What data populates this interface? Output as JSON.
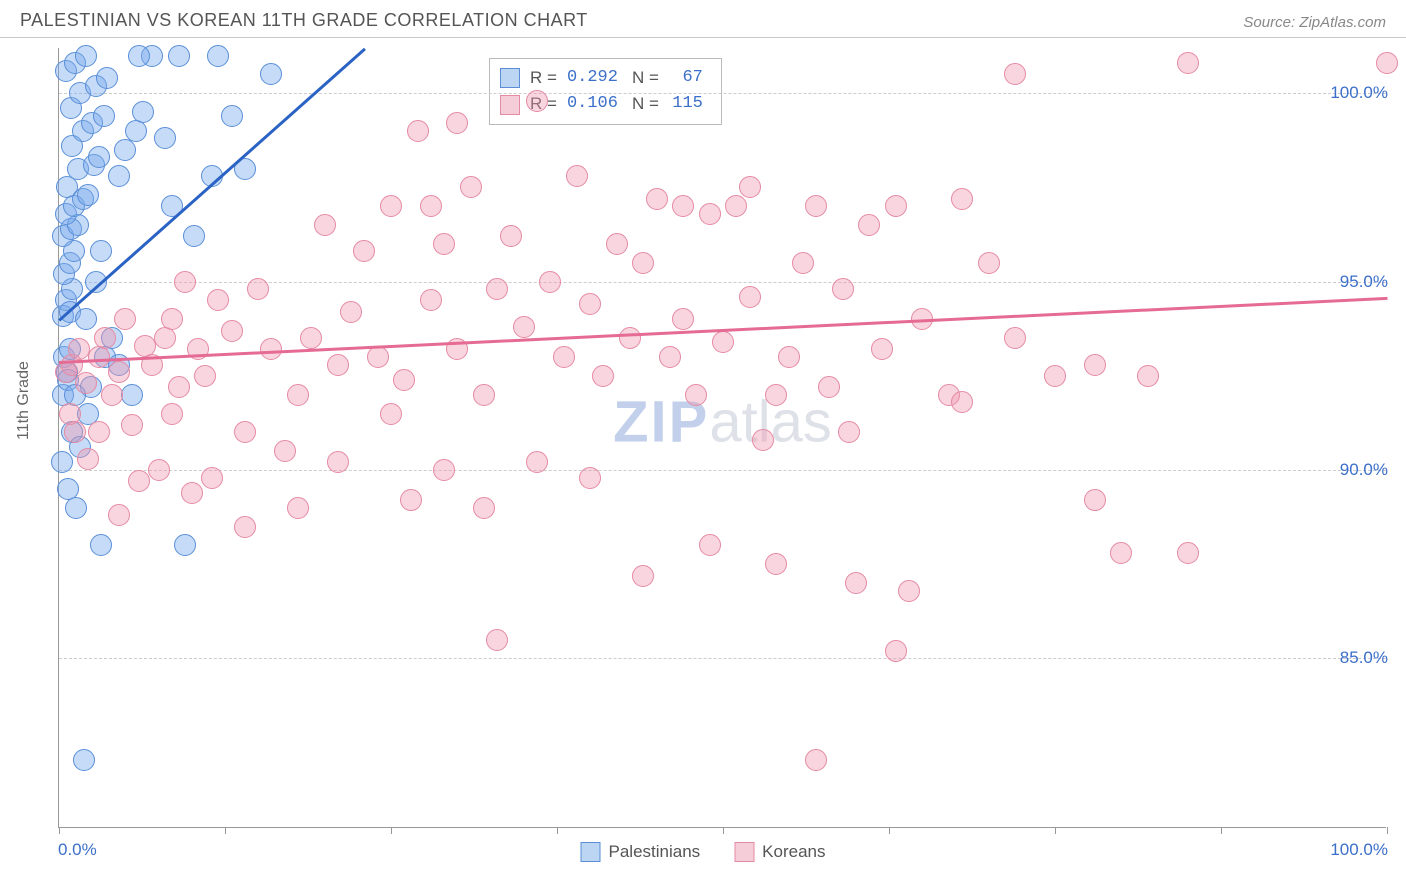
{
  "header": {
    "title": "PALESTINIAN VS KOREAN 11TH GRADE CORRELATION CHART",
    "source_prefix": "Source: ",
    "source_name": "ZipAtlas.com"
  },
  "watermark": {
    "bold": "ZIP",
    "rest": "atlas"
  },
  "chart": {
    "type": "scatter",
    "ylabel": "11th Grade",
    "xlim": [
      0,
      100
    ],
    "ylim": [
      80.5,
      101.2
    ],
    "x_axis_labels": {
      "min": "0.0%",
      "max": "100.0%"
    },
    "x_ticks": [
      0,
      12.5,
      25,
      37.5,
      50,
      62.5,
      75,
      87.5,
      100
    ],
    "y_gridlines": [
      {
        "value": 85.0,
        "label": "85.0%"
      },
      {
        "value": 90.0,
        "label": "90.0%"
      },
      {
        "value": 95.0,
        "label": "95.0%"
      },
      {
        "value": 100.0,
        "label": "100.0%"
      }
    ],
    "background_color": "#ffffff",
    "grid_color": "#cccccc",
    "axis_color": "#999999",
    "tick_font_color": "#3b6fc9",
    "label_fontsize": 16,
    "tick_fontsize": 17,
    "point_radius": 11,
    "point_border_width": 1.5,
    "trend_line_width": 2.5,
    "series": [
      {
        "name": "Palestinians",
        "fill_color": "rgba(120,170,235,0.42)",
        "stroke_color": "#5a8fd8",
        "trend_color": "#2a63c4",
        "swatch_fill": "#bcd5f2",
        "swatch_border": "#5a8fd8",
        "stats": {
          "R": "0.292",
          "N": "67"
        },
        "trend": {
          "x1": 0,
          "y1": 94.0,
          "x2": 23,
          "y2": 101.2
        },
        "points": [
          [
            0.4,
            93.0
          ],
          [
            0.6,
            92.6
          ],
          [
            0.8,
            93.2
          ],
          [
            0.3,
            94.1
          ],
          [
            0.5,
            94.5
          ],
          [
            0.8,
            94.2
          ],
          [
            1.0,
            94.8
          ],
          [
            0.4,
            95.2
          ],
          [
            0.8,
            95.5
          ],
          [
            1.1,
            95.8
          ],
          [
            0.3,
            96.2
          ],
          [
            0.9,
            96.4
          ],
          [
            1.4,
            96.5
          ],
          [
            0.5,
            96.8
          ],
          [
            1.1,
            97.0
          ],
          [
            1.8,
            97.2
          ],
          [
            2.2,
            97.3
          ],
          [
            0.6,
            97.5
          ],
          [
            1.4,
            98.0
          ],
          [
            2.6,
            98.1
          ],
          [
            3.0,
            98.3
          ],
          [
            1.0,
            98.6
          ],
          [
            1.8,
            99.0
          ],
          [
            2.5,
            99.2
          ],
          [
            3.4,
            99.4
          ],
          [
            0.9,
            99.6
          ],
          [
            1.6,
            100.0
          ],
          [
            2.8,
            100.2
          ],
          [
            3.6,
            100.4
          ],
          [
            0.5,
            100.6
          ],
          [
            1.2,
            100.8
          ],
          [
            2.0,
            101.0
          ],
          [
            4.5,
            97.8
          ],
          [
            5.0,
            98.5
          ],
          [
            5.8,
            99.0
          ],
          [
            6.3,
            99.5
          ],
          [
            2.2,
            91.5
          ],
          [
            1.0,
            91.0
          ],
          [
            1.6,
            90.6
          ],
          [
            2.4,
            92.2
          ],
          [
            3.2,
            88.0
          ],
          [
            3.5,
            93.0
          ],
          [
            4.0,
            93.5
          ],
          [
            4.5,
            92.8
          ],
          [
            5.5,
            92.0
          ],
          [
            0.2,
            90.2
          ],
          [
            0.7,
            89.5
          ],
          [
            1.3,
            89.0
          ],
          [
            7.0,
            101.0
          ],
          [
            6.0,
            101.0
          ],
          [
            9.0,
            101.0
          ],
          [
            12.0,
            101.0
          ],
          [
            8.5,
            97.0
          ],
          [
            10.2,
            96.2
          ],
          [
            11.5,
            97.8
          ],
          [
            14.0,
            98.0
          ],
          [
            16.0,
            100.5
          ],
          [
            13.0,
            99.4
          ],
          [
            1.9,
            82.3
          ],
          [
            2.8,
            95.0
          ],
          [
            3.2,
            95.8
          ],
          [
            0.3,
            92.0
          ],
          [
            0.7,
            92.4
          ],
          [
            1.2,
            92.0
          ],
          [
            2.0,
            94.0
          ],
          [
            8.0,
            98.8
          ],
          [
            9.5,
            88.0
          ]
        ]
      },
      {
        "name": "Koreans",
        "fill_color": "rgba(240,150,175,0.40)",
        "stroke_color": "#e58aa3",
        "trend_color": "#e56a94",
        "swatch_fill": "#f5cdd8",
        "swatch_border": "#e58aa3",
        "stats": {
          "R": "0.106",
          "N": "115"
        },
        "trend": {
          "x1": 0,
          "y1": 92.9,
          "x2": 100,
          "y2": 94.6
        },
        "points": [
          [
            0.5,
            92.6
          ],
          [
            1.0,
            92.8
          ],
          [
            1.5,
            93.2
          ],
          [
            2.0,
            92.3
          ],
          [
            0.8,
            91.5
          ],
          [
            1.2,
            91.0
          ],
          [
            2.2,
            90.3
          ],
          [
            3.0,
            93.0
          ],
          [
            3.5,
            93.5
          ],
          [
            4.0,
            92.0
          ],
          [
            4.5,
            92.6
          ],
          [
            5.0,
            94.0
          ],
          [
            5.5,
            91.2
          ],
          [
            6.0,
            89.7
          ],
          [
            6.5,
            93.3
          ],
          [
            7.0,
            92.8
          ],
          [
            7.5,
            90.0
          ],
          [
            8.0,
            93.5
          ],
          [
            8.5,
            94.0
          ],
          [
            9.0,
            92.2
          ],
          [
            9.5,
            95.0
          ],
          [
            10.0,
            89.4
          ],
          [
            10.5,
            93.2
          ],
          [
            11.0,
            92.5
          ],
          [
            12.0,
            94.5
          ],
          [
            13.0,
            93.7
          ],
          [
            14.0,
            91.0
          ],
          [
            15.0,
            94.8
          ],
          [
            16.0,
            93.2
          ],
          [
            17.0,
            90.5
          ],
          [
            18.0,
            92.0
          ],
          [
            19.0,
            93.5
          ],
          [
            20.0,
            96.5
          ],
          [
            21.0,
            92.8
          ],
          [
            22.0,
            94.2
          ],
          [
            23.0,
            95.8
          ],
          [
            24.0,
            93.0
          ],
          [
            25.0,
            97.0
          ],
          [
            26.0,
            92.4
          ],
          [
            27.0,
            99.0
          ],
          [
            28.0,
            94.5
          ],
          [
            29.0,
            96.0
          ],
          [
            30.0,
            93.2
          ],
          [
            31.0,
            97.5
          ],
          [
            32.0,
            92.0
          ],
          [
            33.0,
            94.8
          ],
          [
            34.0,
            96.2
          ],
          [
            35.0,
            93.8
          ],
          [
            36.0,
            90.2
          ],
          [
            37.0,
            95.0
          ],
          [
            38.0,
            93.0
          ],
          [
            39.0,
            97.8
          ],
          [
            40.0,
            94.4
          ],
          [
            41.0,
            92.5
          ],
          [
            42.0,
            96.0
          ],
          [
            43.0,
            93.5
          ],
          [
            44.0,
            95.5
          ],
          [
            45.0,
            97.2
          ],
          [
            46.0,
            93.0
          ],
          [
            47.0,
            94.0
          ],
          [
            48.0,
            92.0
          ],
          [
            49.0,
            96.8
          ],
          [
            50.0,
            93.4
          ],
          [
            51.0,
            97.0
          ],
          [
            52.0,
            94.6
          ],
          [
            53.0,
            90.8
          ],
          [
            54.0,
            87.5
          ],
          [
            55.0,
            93.0
          ],
          [
            56.0,
            95.5
          ],
          [
            57.0,
            82.3
          ],
          [
            58.0,
            92.2
          ],
          [
            59.0,
            94.8
          ],
          [
            60.0,
            87.0
          ],
          [
            61.0,
            96.5
          ],
          [
            62.0,
            93.2
          ],
          [
            63.0,
            85.2
          ],
          [
            65.0,
            94.0
          ],
          [
            67.0,
            92.0
          ],
          [
            70.0,
            95.5
          ],
          [
            72.0,
            93.5
          ],
          [
            75.0,
            92.5
          ],
          [
            78.0,
            89.2
          ],
          [
            80.0,
            87.8
          ],
          [
            82.0,
            92.5
          ],
          [
            85.0,
            100.8
          ],
          [
            33.0,
            85.5
          ],
          [
            100.0,
            100.8
          ],
          [
            68.0,
            97.2
          ],
          [
            63.0,
            97.0
          ],
          [
            57.0,
            97.0
          ],
          [
            52.0,
            97.5
          ],
          [
            47.0,
            97.0
          ],
          [
            28.0,
            97.0
          ],
          [
            30.0,
            99.2
          ],
          [
            36.0,
            99.8
          ],
          [
            72.0,
            100.5
          ],
          [
            18.0,
            89.0
          ],
          [
            14.0,
            88.5
          ],
          [
            11.5,
            89.8
          ],
          [
            4.5,
            88.8
          ],
          [
            8.5,
            91.5
          ],
          [
            26.5,
            89.2
          ],
          [
            29.0,
            90.0
          ],
          [
            32.0,
            89.0
          ],
          [
            40.0,
            89.8
          ],
          [
            44.0,
            87.2
          ],
          [
            49.0,
            88.0
          ],
          [
            54.0,
            92.0
          ],
          [
            59.5,
            91.0
          ],
          [
            64.0,
            86.8
          ],
          [
            25.0,
            91.5
          ],
          [
            21.0,
            90.2
          ],
          [
            85.0,
            87.8
          ],
          [
            78.0,
            92.8
          ],
          [
            68.0,
            91.8
          ],
          [
            3.0,
            91.0
          ]
        ]
      }
    ],
    "stats_legend": {
      "r_label": "R =",
      "n_label": "N ="
    },
    "bottom_legend": {
      "items": [
        "Palestinians",
        "Koreans"
      ]
    }
  }
}
